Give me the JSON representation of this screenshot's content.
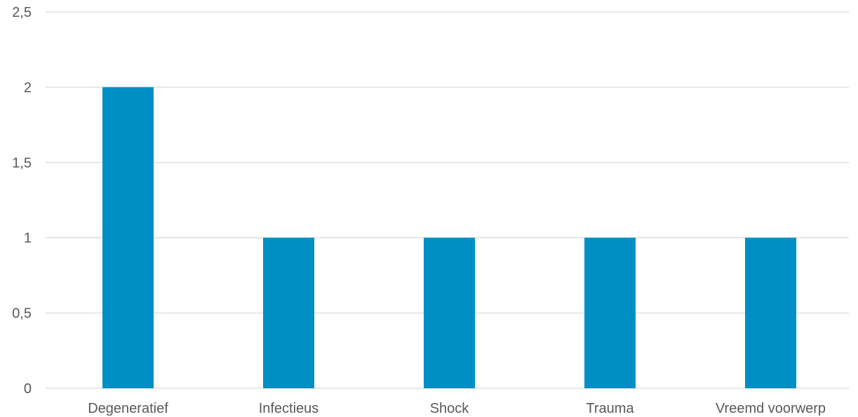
{
  "chart_data": {
    "type": "bar",
    "categories": [
      "Degeneratief",
      "Infectieus",
      "Shock",
      "Trauma",
      "Vreemd voorwerp"
    ],
    "values": [
      2,
      1,
      1,
      1,
      1
    ],
    "ylim": [
      0,
      2.5
    ],
    "yticks": [
      0,
      0.5,
      1,
      1.5,
      2,
      2.5
    ],
    "ytick_labels": [
      "0",
      "0,5",
      "1",
      "1,5",
      "2",
      "2,5"
    ],
    "title": "",
    "xlabel": "",
    "ylabel": "",
    "grid": true,
    "legend": "none",
    "bar_color": "#008fc5",
    "grid_color": "#d9d9d9",
    "text_color": "#595959"
  }
}
